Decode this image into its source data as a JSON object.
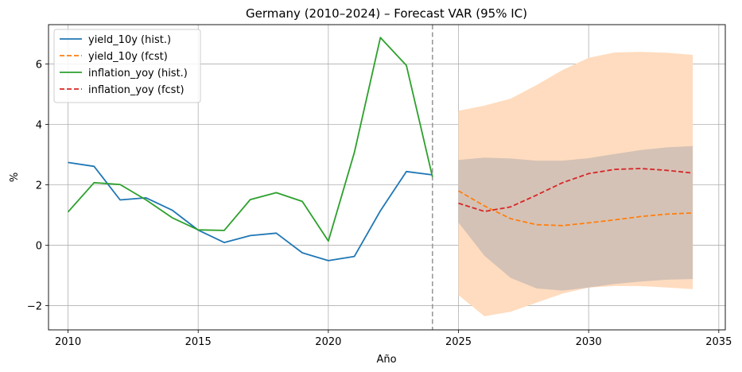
{
  "chart_data": {
    "type": "line",
    "title": "Germany (2010–2024) – Forecast VAR (95% IC)",
    "xlabel": "Año",
    "ylabel": "%",
    "xlim": [
      2009.25,
      2035.25
    ],
    "ylim": [
      -2.8,
      7.3
    ],
    "xticks": [
      2010,
      2015,
      2020,
      2025,
      2030,
      2035
    ],
    "yticks": [
      -2,
      0,
      2,
      4,
      6
    ],
    "ytick_labels": [
      "−2",
      "0",
      "2",
      "4",
      "6"
    ],
    "grid": true,
    "legend_position": "top-left",
    "forecast_start_marker": 2024,
    "series": [
      {
        "name": "yield_10y (hist.)",
        "color": "#1f77b4",
        "style": "solid",
        "x": [
          2010,
          2011,
          2012,
          2013,
          2014,
          2015,
          2016,
          2017,
          2018,
          2019,
          2020,
          2021,
          2022,
          2023,
          2024
        ],
        "values": [
          2.74,
          2.61,
          1.5,
          1.57,
          1.16,
          0.5,
          0.09,
          0.32,
          0.4,
          -0.25,
          -0.51,
          -0.37,
          1.14,
          2.44,
          2.33
        ]
      },
      {
        "name": "yield_10y (fcst)",
        "color": "#ff7f0e",
        "style": "dashed",
        "x": [
          2025,
          2026,
          2027,
          2028,
          2029,
          2030,
          2031,
          2032,
          2033,
          2034
        ],
        "values": [
          1.8,
          1.3,
          0.88,
          0.68,
          0.65,
          0.74,
          0.84,
          0.95,
          1.03,
          1.07
        ]
      },
      {
        "name": "inflation_yoy (hist.)",
        "color": "#2ca02c",
        "style": "solid",
        "x": [
          2010,
          2011,
          2012,
          2013,
          2014,
          2015,
          2016,
          2017,
          2018,
          2019,
          2020,
          2021,
          2022,
          2023,
          2024
        ],
        "values": [
          1.1,
          2.07,
          2.01,
          1.5,
          0.91,
          0.51,
          0.49,
          1.51,
          1.74,
          1.45,
          0.14,
          3.07,
          6.87,
          5.95,
          2.26
        ]
      },
      {
        "name": "inflation_yoy (fcst)",
        "color": "#d62728",
        "style": "dashed",
        "x": [
          2025,
          2026,
          2027,
          2028,
          2029,
          2030,
          2031,
          2032,
          2033,
          2034
        ],
        "values": [
          1.39,
          1.12,
          1.27,
          1.66,
          2.07,
          2.37,
          2.51,
          2.54,
          2.48,
          2.39
        ]
      }
    ],
    "bands": [
      {
        "series": "yield_10y (fcst)",
        "color": "#ffdcbf",
        "x": [
          2025,
          2026,
          2027,
          2028,
          2029,
          2030,
          2031,
          2032,
          2033,
          2034
        ],
        "lower": [
          -1.65,
          -2.35,
          -2.2,
          -1.9,
          -1.6,
          -1.4,
          -1.35,
          -1.35,
          -1.4,
          -1.45
        ],
        "upper": [
          4.45,
          4.62,
          4.85,
          5.3,
          5.8,
          6.2,
          6.38,
          6.4,
          6.37,
          6.3
        ]
      },
      {
        "series": "inflation_yoy (fcst)",
        "color": "#d5c2b6",
        "x": [
          2025,
          2026,
          2027,
          2028,
          2029,
          2030,
          2031,
          2032,
          2033,
          2034
        ],
        "lower": [
          0.75,
          -0.35,
          -1.08,
          -1.43,
          -1.5,
          -1.4,
          -1.28,
          -1.2,
          -1.14,
          -1.12
        ],
        "upper": [
          2.82,
          2.9,
          2.87,
          2.8,
          2.8,
          2.88,
          3.02,
          3.15,
          3.24,
          3.28
        ]
      }
    ]
  }
}
